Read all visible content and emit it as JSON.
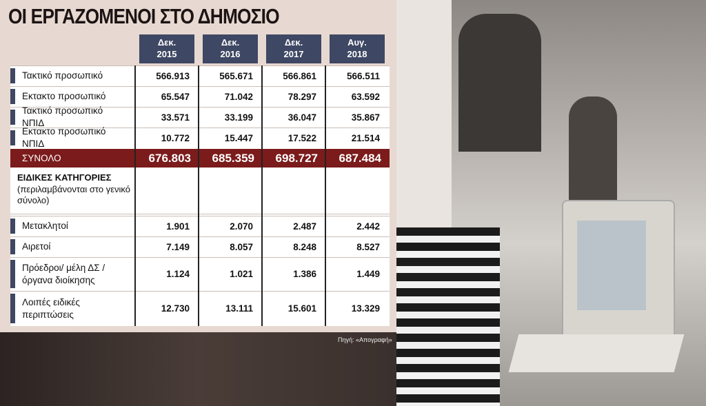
{
  "title": "ΟΙ ΕΡΓΑΖΟΜΕΝΟΙ ΣΤΟ ΔΗΜΟΣΙΟ",
  "table": {
    "columns": [
      [
        "Δεκ.",
        "2015"
      ],
      [
        "Δεκ.",
        "2016"
      ],
      [
        "Δεκ.",
        "2017"
      ],
      [
        "Αυγ.",
        "2018"
      ]
    ],
    "rows": [
      {
        "label": "Τακτικό προσωπικό",
        "values": [
          "566.913",
          "565.671",
          "566.861",
          "566.511"
        ]
      },
      {
        "label": "Εκτακτο προσωπικό",
        "values": [
          "65.547",
          "71.042",
          "78.297",
          "63.592"
        ]
      },
      {
        "label": "Τακτικό προσωπικό ΝΠΙΔ",
        "values": [
          "33.571",
          "33.199",
          "36.047",
          "35.867"
        ]
      },
      {
        "label": "Εκτακτο προσωπικό ΝΠΙΔ",
        "values": [
          "10.772",
          "15.447",
          "17.522",
          "21.514"
        ]
      }
    ],
    "total": {
      "label": "ΣΥΝΟΛΟ",
      "values": [
        "676.803",
        "685.359",
        "698.727",
        "687.484"
      ]
    },
    "section": {
      "title": "ΕΙΔΙΚΕΣ ΚΑΤΗΓΟΡΙΕΣ",
      "note": "(περιλαμβάνονται στο γενικό σύνολο)"
    },
    "special_rows": [
      {
        "label": "Μετακλητοί",
        "values": [
          "1.901",
          "2.070",
          "2.487",
          "2.442"
        ]
      },
      {
        "label": "Αιρετοί",
        "values": [
          "7.149",
          "8.057",
          "8.248",
          "8.527"
        ]
      },
      {
        "label": "Πρόεδροι/ μέλη ΔΣ / όργανα διοίκησης",
        "values": [
          "1.124",
          "1.021",
          "1.386",
          "1.449"
        ]
      },
      {
        "label": "Λοιπές ειδικές περιπτώσεις",
        "values": [
          "12.730",
          "13.111",
          "15.601",
          "13.329"
        ]
      }
    ]
  },
  "source": "Πηγή: «Απογραφή»"
}
